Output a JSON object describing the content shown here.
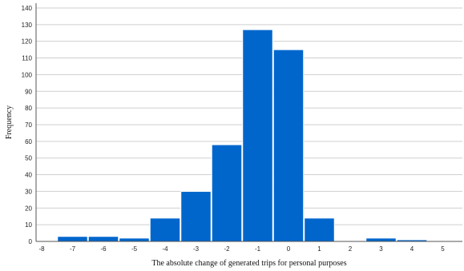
{
  "chart_data": {
    "type": "bar",
    "title": "",
    "xlabel": "The absolute change of generated trips for personal purposes",
    "ylabel": "Frequency",
    "xlim": [
      -8,
      6
    ],
    "ylim": [
      0,
      145
    ],
    "x_ticks": [
      -8,
      -7,
      -6,
      -5,
      -4,
      -3,
      -2,
      -1,
      0,
      1,
      2,
      3,
      4,
      5
    ],
    "y_ticks": [
      0,
      10,
      20,
      30,
      40,
      50,
      60,
      70,
      80,
      90,
      100,
      110,
      120,
      130,
      140
    ],
    "bins": [
      {
        "from": -7.5,
        "to": -6.5,
        "value": 3
      },
      {
        "from": -6.5,
        "to": -5.5,
        "value": 3
      },
      {
        "from": -5.5,
        "to": -4.5,
        "value": 2
      },
      {
        "from": -4.5,
        "to": -3.5,
        "value": 14
      },
      {
        "from": -3.5,
        "to": -2.5,
        "value": 30
      },
      {
        "from": -2.5,
        "to": -1.5,
        "value": 58
      },
      {
        "from": -1.5,
        "to": -0.5,
        "value": 127
      },
      {
        "from": -0.5,
        "to": 0.5,
        "value": 115
      },
      {
        "from": 0.5,
        "to": 1.5,
        "value": 14
      },
      {
        "from": 2.5,
        "to": 3.5,
        "value": 2
      },
      {
        "from": 3.5,
        "to": 4.5,
        "value": 1
      }
    ],
    "grid": true,
    "bar_color": "#0066CC"
  }
}
